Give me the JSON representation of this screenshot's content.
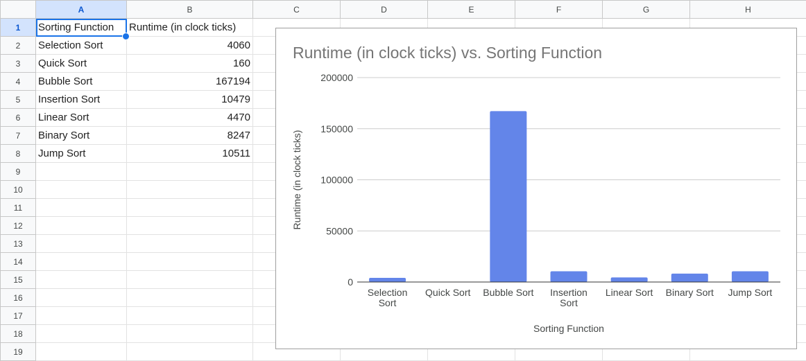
{
  "columns": [
    "A",
    "B",
    "C",
    "D",
    "E",
    "F",
    "G",
    "H"
  ],
  "rows": [
    {
      "n": "1",
      "a": "Sorting Function",
      "b": "Runtime (in clock ticks)"
    },
    {
      "n": "2",
      "a": "Selection Sort",
      "b": "4060"
    },
    {
      "n": "3",
      "a": "Quick Sort",
      "b": "160"
    },
    {
      "n": "4",
      "a": "Bubble Sort",
      "b": "167194"
    },
    {
      "n": "5",
      "a": "Insertion Sort",
      "b": "10479"
    },
    {
      "n": "6",
      "a": "Linear Sort",
      "b": "4470"
    },
    {
      "n": "7",
      "a": "Binary Sort",
      "b": "8247"
    },
    {
      "n": "8",
      "a": "Jump Sort",
      "b": "10511"
    },
    {
      "n": "9",
      "a": "",
      "b": ""
    },
    {
      "n": "10",
      "a": "",
      "b": ""
    },
    {
      "n": "11",
      "a": "",
      "b": ""
    },
    {
      "n": "12",
      "a": "",
      "b": ""
    },
    {
      "n": "13",
      "a": "",
      "b": ""
    },
    {
      "n": "14",
      "a": "",
      "b": ""
    },
    {
      "n": "15",
      "a": "",
      "b": ""
    },
    {
      "n": "16",
      "a": "",
      "b": ""
    },
    {
      "n": "17",
      "a": "",
      "b": ""
    },
    {
      "n": "18",
      "a": "",
      "b": ""
    },
    {
      "n": "19",
      "a": "",
      "b": ""
    }
  ],
  "colors": {
    "bar": "#6385e9",
    "selection": "#1a73e8",
    "title": "#757575"
  },
  "chart_data": {
    "type": "bar",
    "title": "Runtime (in clock ticks) vs. Sorting Function",
    "xlabel": "Sorting Function",
    "ylabel": "Runtime (in clock ticks)",
    "categories": [
      "Selection Sort",
      "Quick Sort",
      "Bubble Sort",
      "Insertion Sort",
      "Linear Sort",
      "Binary Sort",
      "Jump Sort"
    ],
    "values": [
      4060,
      160,
      167194,
      10479,
      4470,
      8247,
      10511
    ],
    "ylim": [
      0,
      200000
    ],
    "yticks": [
      "0",
      "50000",
      "100000",
      "150000",
      "200000"
    ],
    "grid": true,
    "legend": "none"
  }
}
